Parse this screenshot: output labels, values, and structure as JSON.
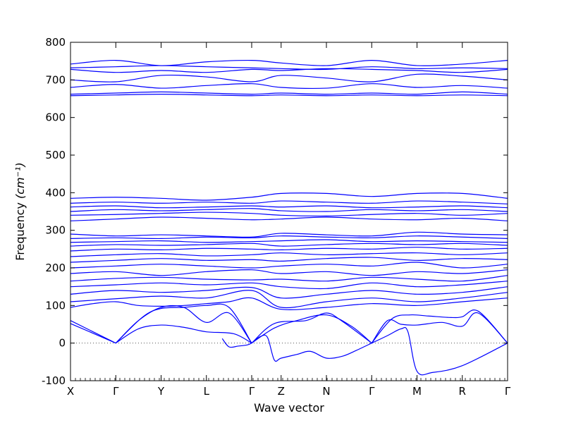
{
  "chart_data": {
    "type": "line",
    "xlabel": "Wave vector",
    "ylabel": "Frequency",
    "ylabel_unit_math": "(cm⁻¹)",
    "ylim": [
      -100,
      800
    ],
    "y_ticks": [
      -100,
      0,
      100,
      200,
      300,
      400,
      500,
      600,
      700,
      800
    ],
    "x_ticks": [
      "X",
      "Γ",
      "Y",
      "L",
      "Γ",
      "Z",
      "N",
      "Γ",
      "M",
      "R",
      "Γ"
    ],
    "x_tick_positions": [
      0,
      1,
      2,
      3,
      4,
      4.65,
      5.65,
      6.65,
      7.65,
      8.65,
      9.65
    ],
    "xlim": [
      0,
      9.65
    ],
    "zero_line": "dotted",
    "line_color": "#0000ff",
    "grid": false,
    "series": [
      {
        "x": [
          0,
          1
        ],
        "values": [
          60,
          0
        ]
      },
      {
        "x": [
          0,
          1
        ],
        "values": [
          52,
          0
        ]
      },
      {
        "x": [
          1,
          1.5,
          2,
          2.5,
          3,
          3.6,
          4
        ],
        "values": [
          0,
          38,
          48,
          42,
          30,
          25,
          0
        ]
      },
      {
        "x": [
          1,
          1.5,
          2,
          2.5,
          3,
          3.5,
          4
        ],
        "values": [
          0,
          60,
          95,
          95,
          55,
          80,
          0
        ]
      },
      {
        "x": [
          1,
          1.6,
          2,
          2.5,
          3,
          3.5,
          4
        ],
        "values": [
          0,
          70,
          92,
          95,
          100,
          95,
          0
        ]
      },
      {
        "x": [
          3.35,
          3.5,
          3.7,
          3.9,
          4
        ],
        "values": [
          12,
          -10,
          -8,
          -5,
          0
        ]
      },
      {
        "x": [
          4,
          4.2,
          4.35,
          4.5,
          4.65,
          5.0,
          5.3,
          5.65,
          6.0,
          6.3,
          6.65
        ],
        "values": [
          0,
          18,
          15,
          -45,
          -40,
          -30,
          -22,
          -40,
          -35,
          -20,
          0
        ]
      },
      {
        "x": [
          4,
          4.5,
          5.0,
          5.65,
          6.2,
          6.65
        ],
        "values": [
          0,
          40,
          60,
          75,
          45,
          0
        ]
      },
      {
        "x": [
          4,
          4.5,
          5.2,
          5.65,
          6.0,
          6.65
        ],
        "values": [
          0,
          52,
          60,
          80,
          58,
          0
        ]
      },
      {
        "x": [
          6.65,
          7.0,
          7.3,
          7.45,
          7.65,
          8.0,
          8.65,
          9.65
        ],
        "values": [
          0,
          20,
          38,
          30,
          -75,
          -78,
          -60,
          0
        ]
      },
      {
        "x": [
          6.65,
          7.0,
          7.3,
          7.65,
          8.2,
          8.65,
          9.0,
          9.65
        ],
        "values": [
          0,
          60,
          50,
          48,
          55,
          45,
          80,
          0
        ]
      },
      {
        "x": [
          6.65,
          7.1,
          7.5,
          7.9,
          8.4,
          8.65,
          9.0,
          9.65
        ],
        "values": [
          0,
          65,
          75,
          72,
          68,
          70,
          85,
          0
        ]
      },
      {
        "x": [
          0,
          0.5,
          1,
          1.5,
          2,
          2.5,
          3,
          3.5,
          4,
          4.65,
          5.65,
          6.65,
          7.65,
          8.65,
          9.65
        ],
        "values": [
          95,
          105,
          110,
          100,
          98,
          100,
          105,
          110,
          120,
          90,
          95,
          105,
          100,
          110,
          120
        ]
      },
      {
        "x": [
          0,
          1,
          2,
          3,
          4,
          4.65,
          5.65,
          6.65,
          7.65,
          8.65,
          9.65
        ],
        "values": [
          110,
          118,
          125,
          120,
          140,
          95,
          110,
          120,
          110,
          120,
          135
        ]
      },
      {
        "x": [
          0,
          1,
          2,
          3,
          4,
          4.65,
          5.65,
          6.65,
          7.65,
          8.65,
          9.65
        ],
        "values": [
          130,
          140,
          135,
          140,
          148,
          120,
          130,
          140,
          130,
          135,
          150
        ]
      },
      {
        "x": [
          0,
          1,
          2,
          3,
          4,
          4.65,
          5.65,
          6.65,
          7.65,
          8.65,
          9.65
        ],
        "values": [
          150,
          155,
          160,
          155,
          160,
          150,
          145,
          160,
          150,
          155,
          165
        ]
      },
      {
        "x": [
          0,
          1,
          2,
          3,
          4,
          4.65,
          5.65,
          6.65,
          7.65,
          8.65,
          9.65
        ],
        "values": [
          165,
          172,
          175,
          170,
          168,
          170,
          165,
          175,
          170,
          165,
          180
        ]
      },
      {
        "x": [
          0,
          1,
          2,
          3,
          4,
          4.65,
          5.65,
          6.65,
          7.65,
          8.65,
          9.65
        ],
        "values": [
          185,
          190,
          180,
          190,
          195,
          185,
          190,
          180,
          190,
          185,
          195
        ]
      },
      {
        "x": [
          0,
          1,
          2,
          3,
          4,
          4.65,
          5.65,
          6.65,
          7.65,
          8.65,
          9.65
        ],
        "values": [
          200,
          205,
          210,
          205,
          200,
          205,
          210,
          205,
          215,
          200,
          210
        ]
      },
      {
        "x": [
          0,
          1,
          2,
          3,
          4,
          4.65,
          5.65,
          6.65,
          7.65,
          8.65,
          9.65
        ],
        "values": [
          215,
          220,
          225,
          220,
          222,
          218,
          225,
          228,
          220,
          225,
          222
        ]
      },
      {
        "x": [
          0,
          1,
          2,
          3,
          4,
          4.65,
          5.65,
          6.65,
          7.65,
          8.65,
          9.65
        ],
        "values": [
          230,
          235,
          238,
          232,
          235,
          240,
          235,
          238,
          240,
          235,
          240
        ]
      },
      {
        "x": [
          0,
          1,
          2,
          3,
          4,
          4.65,
          5.65,
          6.65,
          7.65,
          8.65,
          9.65
        ],
        "values": [
          245,
          250,
          248,
          252,
          250,
          248,
          252,
          250,
          255,
          250,
          252
        ]
      },
      {
        "x": [
          0,
          1,
          2,
          3,
          4,
          4.65,
          5.65,
          6.65,
          7.65,
          8.65,
          9.65
        ],
        "values": [
          258,
          262,
          260,
          262,
          265,
          258,
          262,
          265,
          262,
          265,
          260
        ]
      },
      {
        "x": [
          0,
          1,
          2,
          3,
          4,
          4.65,
          5.65,
          6.65,
          7.65,
          8.65,
          9.65
        ],
        "values": [
          268,
          270,
          272,
          268,
          270,
          272,
          275,
          270,
          272,
          270,
          268
        ]
      },
      {
        "x": [
          0,
          1,
          2,
          3,
          4,
          4.65,
          5.65,
          6.65,
          7.65,
          8.65,
          9.65
        ],
        "values": [
          278,
          280,
          278,
          282,
          280,
          285,
          282,
          280,
          285,
          282,
          278
        ]
      },
      {
        "x": [
          0,
          1,
          2,
          3,
          4,
          4.65,
          5.65,
          6.65,
          7.65,
          8.65,
          9.65
        ],
        "values": [
          290,
          285,
          288,
          285,
          282,
          292,
          288,
          285,
          295,
          290,
          288
        ]
      },
      {
        "x": [
          0,
          1,
          2,
          3,
          4,
          4.65,
          5.65,
          6.65,
          7.65,
          8.65,
          9.65
        ],
        "values": [
          325,
          330,
          335,
          332,
          328,
          330,
          335,
          330,
          328,
          332,
          325
        ]
      },
      {
        "x": [
          0,
          1,
          2,
          3,
          4,
          4.65,
          5.65,
          6.65,
          7.65,
          8.65,
          9.65
        ],
        "values": [
          340,
          342,
          345,
          348,
          345,
          340,
          338,
          342,
          345,
          340,
          345
        ]
      },
      {
        "x": [
          0,
          1,
          2,
          3,
          4,
          4.65,
          5.65,
          6.65,
          7.65,
          8.65,
          9.65
        ],
        "values": [
          350,
          355,
          352,
          355,
          358,
          352,
          350,
          355,
          352,
          355,
          350
        ]
      },
      {
        "x": [
          0,
          1,
          2,
          3,
          4,
          4.65,
          5.65,
          6.65,
          7.65,
          8.65,
          9.65
        ],
        "values": [
          362,
          365,
          360,
          362,
          365,
          362,
          365,
          360,
          362,
          365,
          360
        ]
      },
      {
        "x": [
          0,
          1,
          2,
          3,
          4,
          4.65,
          5.65,
          6.65,
          7.65,
          8.65,
          9.65
        ],
        "values": [
          372,
          375,
          372,
          375,
          372,
          378,
          375,
          372,
          378,
          375,
          370
        ]
      },
      {
        "x": [
          0,
          1,
          2,
          3,
          4,
          4.65,
          5.65,
          6.65,
          7.65,
          8.65,
          9.65
        ],
        "values": [
          385,
          388,
          385,
          380,
          388,
          398,
          398,
          390,
          398,
          398,
          385
        ]
      },
      {
        "x": [
          0,
          1,
          2,
          3,
          4,
          4.65,
          5.65,
          6.65,
          7.65,
          8.65,
          9.65
        ],
        "values": [
          658,
          660,
          662,
          660,
          658,
          660,
          658,
          660,
          658,
          660,
          658
        ]
      },
      {
        "x": [
          0,
          1,
          2,
          3,
          4,
          4.65,
          5.65,
          6.65,
          7.65,
          8.65,
          9.65
        ],
        "values": [
          662,
          665,
          668,
          665,
          662,
          665,
          662,
          665,
          662,
          668,
          662
        ]
      },
      {
        "x": [
          0,
          1,
          2,
          3,
          4,
          4.65,
          5.65,
          6.65,
          7.65,
          8.65,
          9.65
        ],
        "values": [
          680,
          688,
          678,
          685,
          690,
          680,
          678,
          690,
          680,
          685,
          678
        ]
      },
      {
        "x": [
          0,
          1,
          2,
          3,
          4,
          4.65,
          5.65,
          6.65,
          7.65,
          8.65,
          9.65
        ],
        "values": [
          700,
          695,
          712,
          708,
          695,
          712,
          705,
          695,
          715,
          710,
          700
        ]
      },
      {
        "x": [
          0,
          1,
          2,
          3,
          4,
          4.65,
          5.65,
          6.65,
          7.65,
          8.65,
          9.65
        ],
        "values": [
          728,
          720,
          725,
          720,
          728,
          725,
          730,
          728,
          725,
          720,
          728
        ]
      },
      {
        "x": [
          0,
          1,
          2,
          3,
          4,
          4.65,
          5.65,
          6.65,
          7.65,
          8.65,
          9.65
        ],
        "values": [
          732,
          735,
          738,
          735,
          732,
          730,
          728,
          735,
          730,
          732,
          730
        ]
      },
      {
        "x": [
          0,
          1,
          2,
          3,
          4,
          4.65,
          5.65,
          6.65,
          7.65,
          8.65,
          9.65
        ],
        "values": [
          742,
          752,
          738,
          748,
          752,
          745,
          738,
          752,
          738,
          742,
          752
        ]
      }
    ]
  }
}
